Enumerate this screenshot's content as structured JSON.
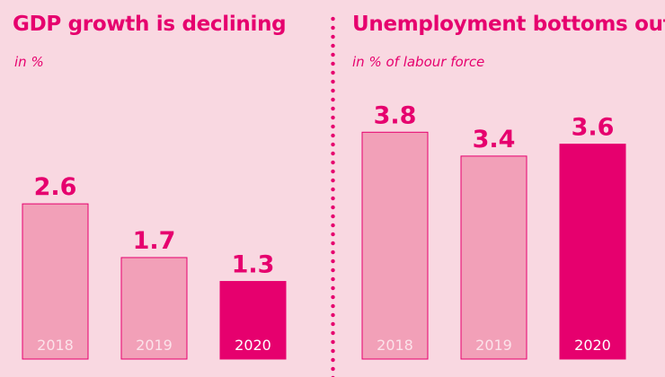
{
  "colors": {
    "background": "#f9d8e1",
    "accent": "#e6006e",
    "bar_past": "#f2a0b8",
    "bar_current": "#e6006e",
    "bar_label_light": "#fbe3ea"
  },
  "chart_data": [
    {
      "type": "bar",
      "title": "GDP growth is declining",
      "subtitle": "in %",
      "categories": [
        "2018",
        "2019",
        "2020"
      ],
      "values": [
        2.6,
        1.7,
        1.3
      ],
      "value_labels": [
        "2.6",
        "1.7",
        "1.3"
      ],
      "highlight_index": 2,
      "ylim": [
        0,
        4.8
      ],
      "grid": false,
      "legend": "none"
    },
    {
      "type": "bar",
      "title": "Unemployment bottoms out",
      "subtitle": "in % of labour force",
      "categories": [
        "2018",
        "2019",
        "2020"
      ],
      "values": [
        3.8,
        3.4,
        3.6
      ],
      "value_labels": [
        "3.8",
        "3.4",
        "3.6"
      ],
      "highlight_index": 2,
      "ylim": [
        0,
        4.8
      ],
      "grid": false,
      "legend": "none"
    }
  ]
}
